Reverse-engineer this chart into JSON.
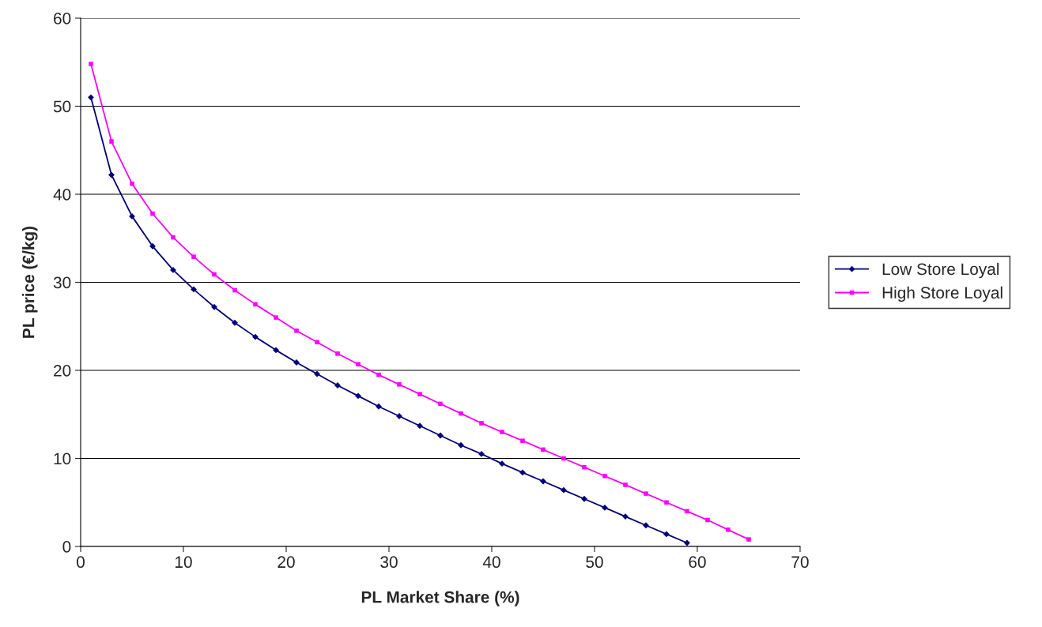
{
  "chart_data": {
    "type": "line",
    "xlabel": "PL Market Share (%)",
    "ylabel": "PL price (€/kg)",
    "xlim": [
      0,
      70
    ],
    "xticks": [
      0,
      10,
      20,
      30,
      40,
      50,
      60,
      70
    ],
    "ylim": [
      0,
      60
    ],
    "yticks": [
      0,
      10,
      20,
      30,
      40,
      50,
      60
    ],
    "grid": "y",
    "legend": "right",
    "series": [
      {
        "name": "Low Store Loyal",
        "color": "#000080",
        "marker": "diamond",
        "x": [
          1,
          3,
          5,
          7,
          9,
          11,
          13,
          15,
          17,
          19,
          21,
          23,
          25,
          27,
          29,
          31,
          33,
          35,
          37,
          39,
          41,
          43,
          45,
          47,
          49,
          51,
          53,
          55,
          57,
          59
        ],
        "values": [
          51,
          42.2,
          37.5,
          34.1,
          31.4,
          29.2,
          27.2,
          25.4,
          23.8,
          22.3,
          20.9,
          19.6,
          18.3,
          17.1,
          15.9,
          14.8,
          13.7,
          12.6,
          11.5,
          10.5,
          9.4,
          8.4,
          7.4,
          6.4,
          5.4,
          4.4,
          3.4,
          2.4,
          1.4,
          0.4
        ]
      },
      {
        "name": "High Store Loyal",
        "color": "#ff00ff",
        "marker": "square",
        "x": [
          1,
          3,
          5,
          7,
          9,
          11,
          13,
          15,
          17,
          19,
          21,
          23,
          25,
          27,
          29,
          31,
          33,
          35,
          37,
          39,
          41,
          43,
          45,
          47,
          49,
          51,
          53,
          55,
          57,
          59,
          61,
          63,
          65
        ],
        "values": [
          54.8,
          46,
          41.2,
          37.8,
          35.1,
          32.9,
          30.9,
          29.1,
          27.5,
          26,
          24.5,
          23.2,
          21.9,
          20.7,
          19.5,
          18.4,
          17.3,
          16.2,
          15.1,
          14,
          13,
          12,
          11,
          10,
          9,
          8,
          7,
          6,
          5,
          4,
          3,
          1.9,
          0.8
        ]
      }
    ]
  }
}
